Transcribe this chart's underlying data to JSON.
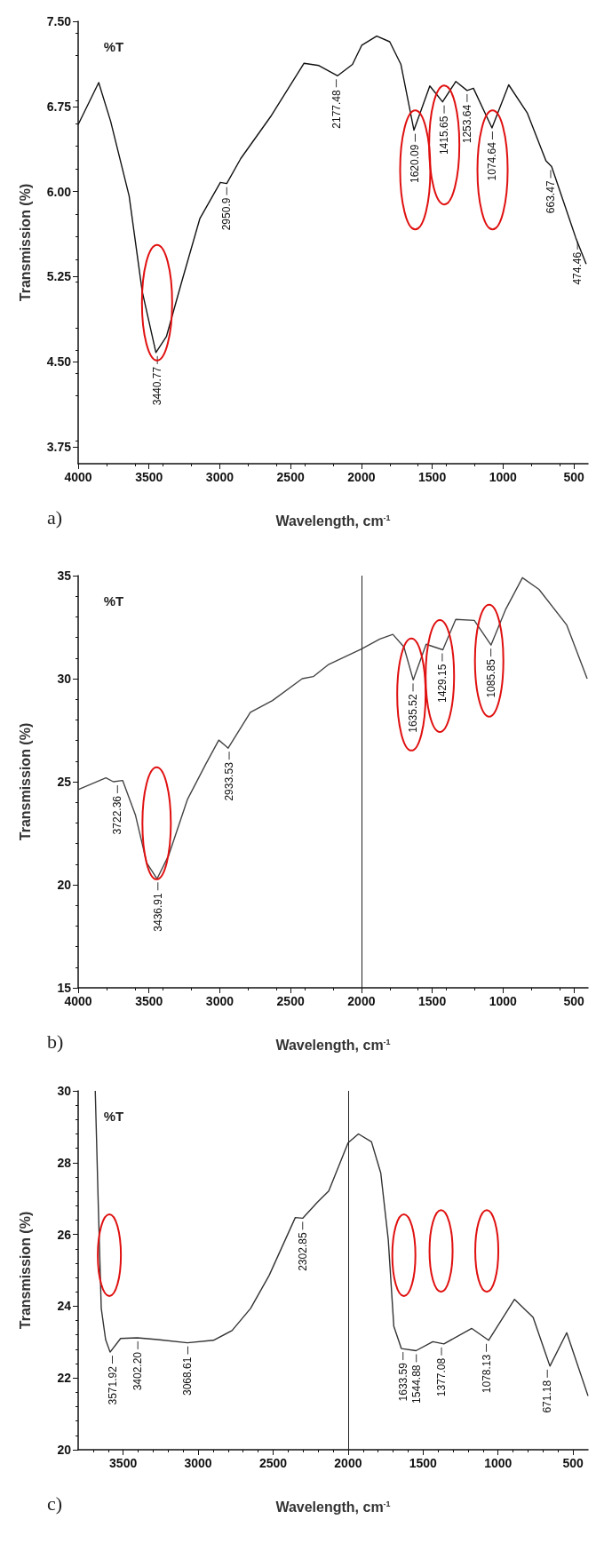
{
  "chart_data": [
    {
      "type": "line",
      "title": "a)",
      "xlabel": "Wavelength, cm$^{-1}$",
      "ylabel": "Transmission (%)",
      "color": "#111111",
      "marker": "none",
      "grid": false,
      "xlim": [
        4000,
        400
      ],
      "xticks": [
        4000,
        3500,
        3000,
        2500,
        2000,
        1500,
        1000,
        500
      ],
      "ylim": [
        3.6,
        7.5
      ],
      "yticks": [
        {
          "value": 3.75,
          "label": "3.75"
        },
        {
          "value": 4.5,
          "label": "4.50"
        },
        {
          "value": 5.25,
          "label": "5.25"
        },
        {
          "value": 6,
          "label": "6.00"
        },
        {
          "value": 6.75,
          "label": "6.75"
        },
        {
          "value": 7.5,
          "label": "7.50"
        }
      ],
      "x": [
        4000,
        3855,
        3771,
        3640,
        3548,
        3451,
        3377,
        3272,
        3141,
        2996,
        2951,
        2852,
        2641,
        2405,
        2300,
        2168,
        2063,
        1997,
        1892,
        1800,
        1721,
        1629,
        1517,
        1427,
        1333,
        1254,
        1209,
        1078,
        960,
        828,
        697,
        657,
        486,
        413
      ],
      "values": [
        6.59,
        6.96,
        6.62,
        5.96,
        5.12,
        4.58,
        4.72,
        5.19,
        5.76,
        6.08,
        6.07,
        6.29,
        6.66,
        7.13,
        7.11,
        7.02,
        7.12,
        7.29,
        7.37,
        7.32,
        7.12,
        6.54,
        6.93,
        6.79,
        6.97,
        6.89,
        6.91,
        6.56,
        6.94,
        6.69,
        6.27,
        6.22,
        5.59,
        5.36
      ],
      "annotations": [
        "%T",
        {
          "text": "3440.77",
          "x": 3440.77,
          "y": 4.58
        },
        {
          "text": "2950.9",
          "x": 2950.9,
          "y": 6.07
        },
        {
          "text": "2177.48",
          "x": 2177.48,
          "y": 7.02
        },
        {
          "text": "1620.09",
          "x": 1620.09,
          "y": 6.54
        },
        {
          "text": "1415.65",
          "x": 1415.65,
          "y": 6.79
        },
        {
          "text": "1253.64",
          "x": 1253.64,
          "y": 6.89
        },
        {
          "text": "1074.64",
          "x": 1074.64,
          "y": 6.56
        },
        {
          "text": "663.47",
          "x": 663.47,
          "y": 6.22
        },
        {
          "text": "474.46",
          "x": 474.46,
          "y": 5.59
        }
      ]
    },
    {
      "type": "line",
      "title": "b)",
      "xlabel": "Wavelength, cm$^{-1}$",
      "ylabel": "Transmission (%)",
      "color": "#444444",
      "marker": "none",
      "grid": false,
      "xlim": [
        4000,
        400
      ],
      "xticks": [
        4000,
        3500,
        3000,
        2500,
        2000,
        1500,
        1000,
        500
      ],
      "ylim": [
        15,
        35
      ],
      "yticks": [
        15,
        20,
        25,
        30,
        35
      ],
      "x": [
        4000,
        3804,
        3752,
        3686,
        3595,
        3516,
        3443,
        3360,
        3229,
        3098,
        3007,
        2941,
        2784,
        2628,
        2418,
        2340,
        2236,
        2000,
        1870,
        1778,
        1700,
        1634,
        1543,
        1425,
        1334,
        1203,
        1085,
        981,
        863,
        746,
        550,
        406
      ],
      "values": [
        24.62,
        25.19,
        25.0,
        25.06,
        23.37,
        21.06,
        20.29,
        21.44,
        24.13,
        25.87,
        27.02,
        26.63,
        28.37,
        28.94,
        30.0,
        30.1,
        30.67,
        31.44,
        31.92,
        32.15,
        31.54,
        29.94,
        31.67,
        31.4,
        32.88,
        32.83,
        31.63,
        33.37,
        34.9,
        34.33,
        32.6,
        30.0
      ],
      "ref_lines": [
        {
          "axis": "x",
          "value": 2000,
          "color": "#222222"
        }
      ],
      "annotations": [
        "%T",
        {
          "text": "3722.36",
          "x": 3722.36,
          "y": 25.0
        },
        {
          "text": "3436.91",
          "x": 3436.91,
          "y": 20.29
        },
        {
          "text": "2933.53",
          "x": 2933.53,
          "y": 26.63
        },
        {
          "text": "1635.52",
          "x": 1635.52,
          "y": 29.94
        },
        {
          "text": "1429.15",
          "x": 1429.15,
          "y": 31.4
        },
        {
          "text": "1085.85",
          "x": 1085.85,
          "y": 31.63
        }
      ]
    },
    {
      "type": "line",
      "title": "c)",
      "xlabel": "Wavelength, cm$^{-1}$",
      "ylabel": "Transmission (%)",
      "color": "#333333",
      "marker": "none",
      "grid": false,
      "xlim": [
        3800,
        400
      ],
      "xticks": [
        3500,
        3000,
        2500,
        2000,
        1500,
        1000,
        500
      ],
      "ylim": [
        20,
        30
      ],
      "yticks": [
        20,
        22,
        24,
        26,
        28,
        30
      ],
      "x": [
        3686,
        3666,
        3646,
        3617,
        3587,
        3517,
        3406,
        3270,
        3071,
        2898,
        2774,
        2650,
        2526,
        2352,
        2303,
        2204,
        2129,
        2000,
        1931,
        1844,
        1782,
        1732,
        1695,
        1645,
        1547,
        1435,
        1361,
        1175,
        1063,
        890,
        766,
        654,
        542,
        400
      ],
      "values": [
        30.0,
        26.84,
        23.94,
        23.07,
        22.72,
        23.1,
        23.12,
        23.07,
        22.98,
        23.05,
        23.32,
        23.94,
        24.86,
        26.47,
        26.45,
        26.9,
        27.21,
        28.55,
        28.8,
        28.58,
        27.71,
        25.85,
        23.44,
        22.82,
        22.76,
        23.01,
        22.95,
        23.38,
        23.05,
        24.19,
        23.69,
        22.33,
        23.26,
        21.5
      ],
      "ref_lines": [
        {
          "axis": "x",
          "value": 2000,
          "color": "#222222"
        }
      ],
      "annotations": [
        "%T",
        {
          "text": "3571.92",
          "x": 3571.92,
          "y": 22.72
        },
        {
          "text": "3402.20",
          "x": 3402.2,
          "y": 23.12
        },
        {
          "text": "3068.61",
          "x": 3068.61,
          "y": 22.98
        },
        {
          "text": "2302.85",
          "x": 2302.85,
          "y": 26.45
        },
        {
          "text": "1633.59",
          "x": 1633.59,
          "y": 22.82
        },
        {
          "text": "1544.88",
          "x": 1544.88,
          "y": 22.76
        },
        {
          "text": "1377.08",
          "x": 1377.08,
          "y": 22.95
        },
        {
          "text": "1078.13",
          "x": 1078.13,
          "y": 23.05
        },
        {
          "text": "671.18",
          "x": 671.18,
          "y": 22.33
        }
      ]
    }
  ]
}
